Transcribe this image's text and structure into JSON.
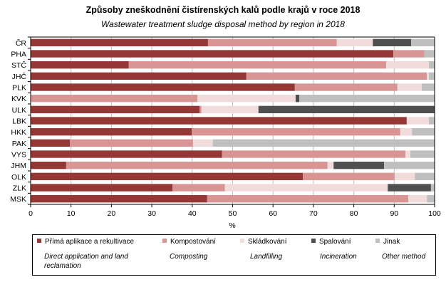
{
  "chart_data": {
    "type": "bar",
    "orientation": "horizontal",
    "stacked": true,
    "title": "Způsoby  zneškodnění čistírenských  kalů podle krajů v roce 2018",
    "subtitle": "Wastewater treatment sludge disposal method by region in 2018",
    "xlabel": "%",
    "ylabel": "",
    "xlim": [
      0,
      100
    ],
    "xticks": [
      "0",
      "10",
      "20",
      "30",
      "40",
      "50",
      "60",
      "70",
      "80",
      "90",
      "100"
    ],
    "grid": true,
    "legend_position": "bottom",
    "categories": [
      "ČR",
      "PHA",
      "STČ",
      "JHČ",
      "PLK",
      "KVK",
      "ULK",
      "LBK",
      "HKK",
      "PAK",
      "VYS",
      "JHM",
      "OLK",
      "ZLK",
      "MSK"
    ],
    "series": [
      {
        "name": "Přímá aplikace a rekultivace",
        "name_en": "Direct application and land reclamation",
        "color": "#953735",
        "values": [
          43.9,
          89.8,
          24.3,
          53.4,
          65.4,
          0,
          41.8,
          93.1,
          39.9,
          9.7,
          47.4,
          8.8,
          67.4,
          35.1,
          43.7
        ]
      },
      {
        "name": "Kompostování",
        "name_en": "Composting",
        "color": "#D99594",
        "values": [
          31.9,
          7.7,
          63.7,
          44.7,
          25.4,
          41.3,
          0.5,
          0,
          51.6,
          30.5,
          45.4,
          64.7,
          22.7,
          13.0,
          49.8
        ]
      },
      {
        "name": "Skládkování",
        "name_en": "Landfilling",
        "color": "#F2DCDB",
        "values": [
          8.9,
          0,
          10.6,
          0.5,
          6.0,
          24.3,
          14.1,
          5.5,
          2.9,
          4.9,
          1.2,
          1.5,
          5.0,
          40.3,
          4.6
        ]
      },
      {
        "name": "Spalování",
        "name_en": "Incineration",
        "color": "#4F4F4F",
        "values": [
          9.5,
          0,
          0,
          0,
          0,
          0.9,
          43.6,
          0,
          0,
          0,
          0,
          12.5,
          0,
          10.7,
          0
        ]
      },
      {
        "name": "Jinak",
        "name_en": "Other method",
        "color": "#BFBFBF",
        "values": [
          5.8,
          2.5,
          1.4,
          1.4,
          3.2,
          33.5,
          0,
          1.4,
          5.6,
          54.9,
          6.0,
          12.5,
          4.9,
          0.9,
          1.9
        ]
      }
    ]
  },
  "legend": {
    "items": [
      {
        "label": "Přímá aplikace a rekultivace",
        "label_en": "Direct application and land reclamation"
      },
      {
        "label": "Kompostování",
        "label_en": "Composting"
      },
      {
        "label": "Skládkování",
        "label_en": "Landfilling"
      },
      {
        "label": "Spalování",
        "label_en": "Incineration"
      },
      {
        "label": "Jinak",
        "label_en": "Other method"
      }
    ]
  }
}
